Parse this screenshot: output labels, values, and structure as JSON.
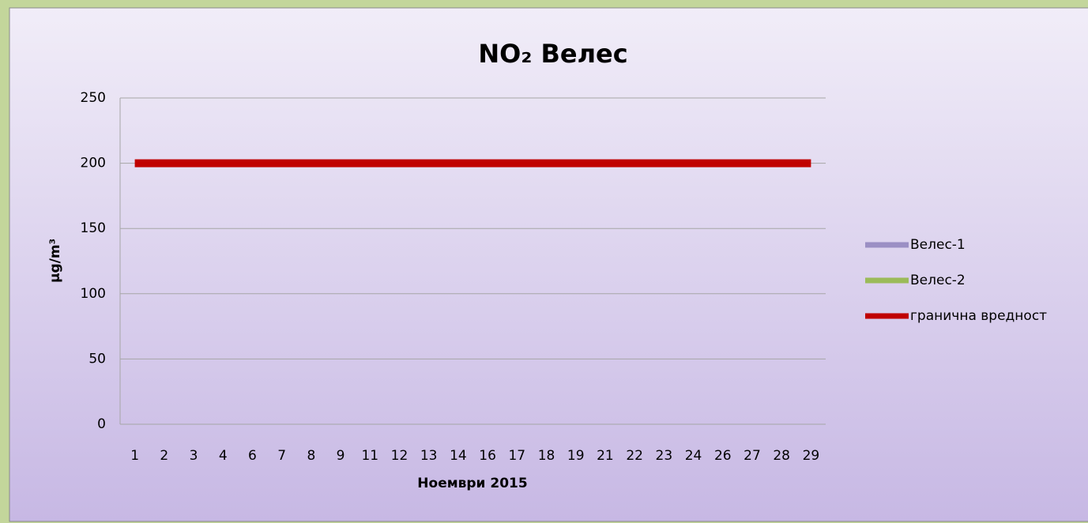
{
  "chart_data": {
    "type": "line",
    "title": "NO₂ Велес",
    "y_label": "µg/m³",
    "x_label": "Ноември 2015",
    "categories": [
      "1",
      "2",
      "3",
      "4",
      "6",
      "7",
      "8",
      "9",
      "11",
      "12",
      "13",
      "14",
      "16",
      "17",
      "18",
      "19",
      "21",
      "22",
      "23",
      "24",
      "26",
      "27",
      "28",
      "29"
    ],
    "series": [
      {
        "name": "Велес-1",
        "color": "#9b8fc4",
        "values": [
          null,
          null,
          null,
          null,
          null,
          null,
          null,
          null,
          null,
          null,
          null,
          null,
          null,
          null,
          null,
          null,
          null,
          null,
          null,
          null,
          null,
          null,
          null,
          null
        ]
      },
      {
        "name": "Велес-2",
        "color": "#9bbb59",
        "values": [
          null,
          null,
          null,
          null,
          null,
          null,
          null,
          null,
          null,
          null,
          null,
          null,
          null,
          null,
          null,
          null,
          null,
          null,
          null,
          null,
          null,
          null,
          null,
          null
        ]
      },
      {
        "name": "гранична вредност",
        "color": "#c00000",
        "values": [
          200,
          200,
          200,
          200,
          200,
          200,
          200,
          200,
          200,
          200,
          200,
          200,
          200,
          200,
          200,
          200,
          200,
          200,
          200,
          200,
          200,
          200,
          200,
          200
        ]
      }
    ],
    "ylim": [
      0,
      250
    ],
    "yticks": [
      0,
      50,
      100,
      150,
      200,
      250
    ],
    "grid": true,
    "legend": "right"
  }
}
